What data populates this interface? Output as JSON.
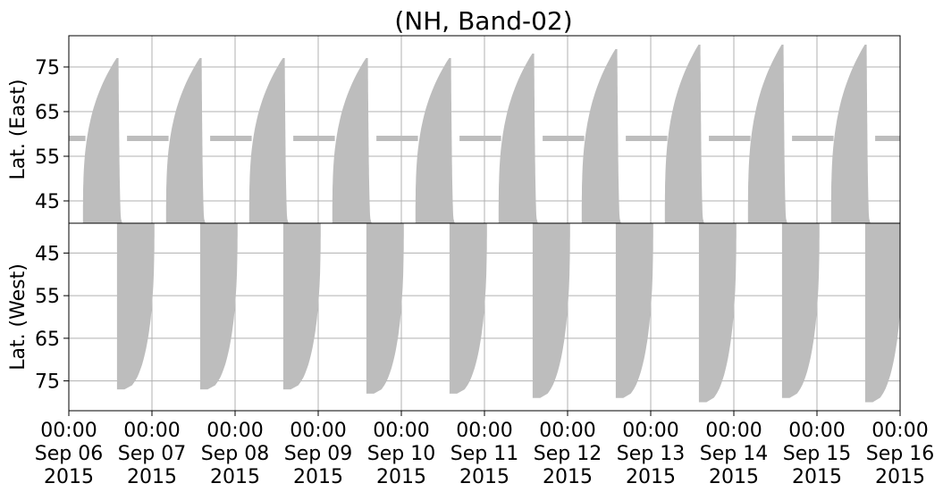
{
  "chart_data": {
    "type": "scatter",
    "title": "(NH, Band-02)",
    "xlabel": "",
    "x_ticks": [
      {
        "time": "00:00",
        "day": "Sep 06",
        "year": "2015"
      },
      {
        "time": "00:00",
        "day": "Sep 07",
        "year": "2015"
      },
      {
        "time": "00:00",
        "day": "Sep 08",
        "year": "2015"
      },
      {
        "time": "00:00",
        "day": "Sep 09",
        "year": "2015"
      },
      {
        "time": "00:00",
        "day": "Sep 10",
        "year": "2015"
      },
      {
        "time": "00:00",
        "day": "Sep 11",
        "year": "2015"
      },
      {
        "time": "00:00",
        "day": "Sep 12",
        "year": "2015"
      },
      {
        "time": "00:00",
        "day": "Sep 13",
        "year": "2015"
      },
      {
        "time": "00:00",
        "day": "Sep 14",
        "year": "2015"
      },
      {
        "time": "00:00",
        "day": "Sep 15",
        "year": "2015"
      },
      {
        "time": "00:00",
        "day": "Sep 16",
        "year": "2015"
      }
    ],
    "xlim": [
      "2015-09-06 00:00",
      "2015-09-16 00:00"
    ],
    "grid": true,
    "marker_color": "#bdbdbd",
    "panels": [
      {
        "name": "east",
        "ylabel": "Lat. (East)",
        "ylim": [
          82,
          40
        ],
        "yticks": [
          45,
          55,
          65,
          75
        ],
        "band_latitude": 59,
        "band_ranges": [
          [
            0,
            0.2
          ],
          [
            0.7,
            1.2
          ],
          [
            1.7,
            2.2
          ],
          [
            2.7,
            3.2
          ],
          [
            3.7,
            4.2
          ],
          [
            4.7,
            5.2
          ],
          [
            5.7,
            6.2
          ],
          [
            6.7,
            7.2
          ],
          [
            7.7,
            8.2
          ],
          [
            8.7,
            9.2
          ],
          [
            9.7,
            10.0
          ]
        ],
        "events": [
          {
            "start_day": 0.17,
            "peak_lat": 77
          },
          {
            "start_day": 1.17,
            "peak_lat": 77
          },
          {
            "start_day": 2.17,
            "peak_lat": 77
          },
          {
            "start_day": 3.17,
            "peak_lat": 77
          },
          {
            "start_day": 4.17,
            "peak_lat": 77
          },
          {
            "start_day": 5.17,
            "peak_lat": 78
          },
          {
            "start_day": 6.17,
            "peak_lat": 79
          },
          {
            "start_day": 7.17,
            "peak_lat": 80
          },
          {
            "start_day": 8.17,
            "peak_lat": 80
          },
          {
            "start_day": 9.17,
            "peak_lat": 80
          }
        ]
      },
      {
        "name": "west",
        "ylabel": "Lat. (West)",
        "ylim": [
          38,
          82
        ],
        "yticks": [
          45,
          55,
          65,
          75
        ],
        "events": [
          {
            "start_day": 0.58,
            "peak_lat": 77
          },
          {
            "start_day": 1.58,
            "peak_lat": 77
          },
          {
            "start_day": 2.58,
            "peak_lat": 77
          },
          {
            "start_day": 3.58,
            "peak_lat": 78
          },
          {
            "start_day": 4.58,
            "peak_lat": 78
          },
          {
            "start_day": 5.58,
            "peak_lat": 79
          },
          {
            "start_day": 6.58,
            "peak_lat": 79
          },
          {
            "start_day": 7.58,
            "peak_lat": 80
          },
          {
            "start_day": 8.58,
            "peak_lat": 79
          },
          {
            "start_day": 9.58,
            "peak_lat": 80
          }
        ]
      }
    ]
  }
}
